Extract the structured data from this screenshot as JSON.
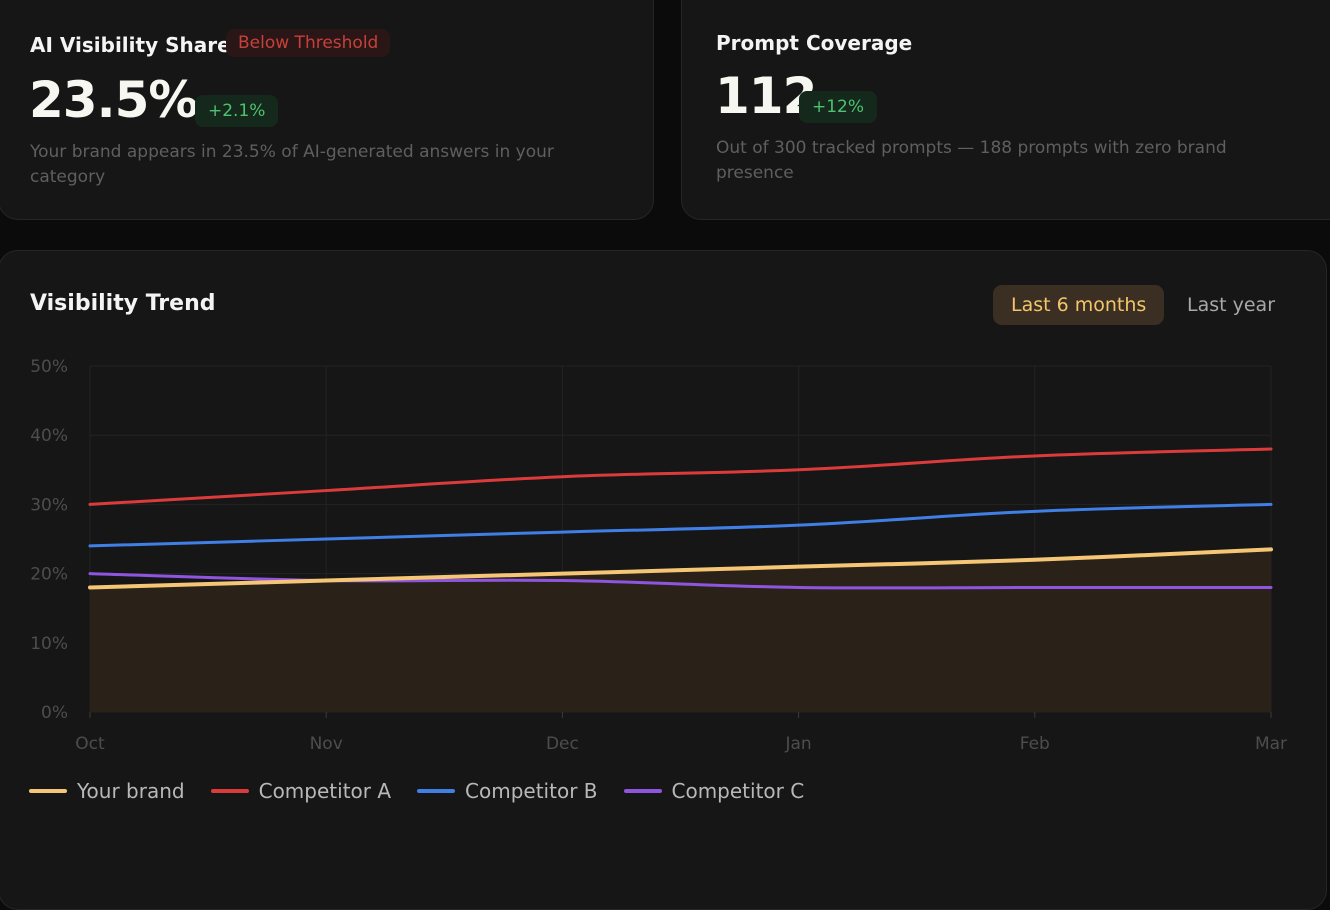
{
  "kpis": {
    "visibility": {
      "title": "AI Visibility Share",
      "badge": "Below Threshold",
      "value": "23.5%",
      "delta": "+2.1%",
      "description": "Your brand appears in 23.5% of AI-generated answers in your category"
    },
    "coverage": {
      "title": "Prompt Coverage",
      "value": "112",
      "delta": "+12%",
      "description": "Out of 300 tracked prompts — 188 prompts with zero brand presence"
    }
  },
  "trend": {
    "title": "Visibility Trend",
    "ranges": [
      "Last 6 months",
      "Last year"
    ],
    "active_range": "Last 6 months"
  },
  "colors": {
    "your_brand": "#f5c675",
    "competitor_a": "#dc3b3b",
    "competitor_b": "#3f7fe6",
    "competitor_c": "#8f55e0"
  },
  "chart_data": {
    "type": "line",
    "title": "Visibility Trend",
    "categories": [
      "Oct",
      "Nov",
      "Dec",
      "Jan",
      "Feb",
      "Mar"
    ],
    "y_ticks": [
      "0%",
      "10%",
      "20%",
      "30%",
      "40%",
      "50%"
    ],
    "ylim": [
      0,
      50
    ],
    "grid": true,
    "legend_position": "bottom-left",
    "series": [
      {
        "name": "Your brand",
        "color": "#f5c675",
        "values": [
          18,
          19,
          20,
          21,
          22,
          23.5
        ],
        "filled": true
      },
      {
        "name": "Competitor A",
        "color": "#dc3b3b",
        "values": [
          30,
          32,
          34,
          35,
          37,
          38
        ]
      },
      {
        "name": "Competitor B",
        "color": "#3f7fe6",
        "values": [
          24,
          25,
          26,
          27,
          29,
          30
        ]
      },
      {
        "name": "Competitor C",
        "color": "#8f55e0",
        "values": [
          20,
          19,
          19,
          18,
          18,
          18
        ]
      }
    ]
  }
}
